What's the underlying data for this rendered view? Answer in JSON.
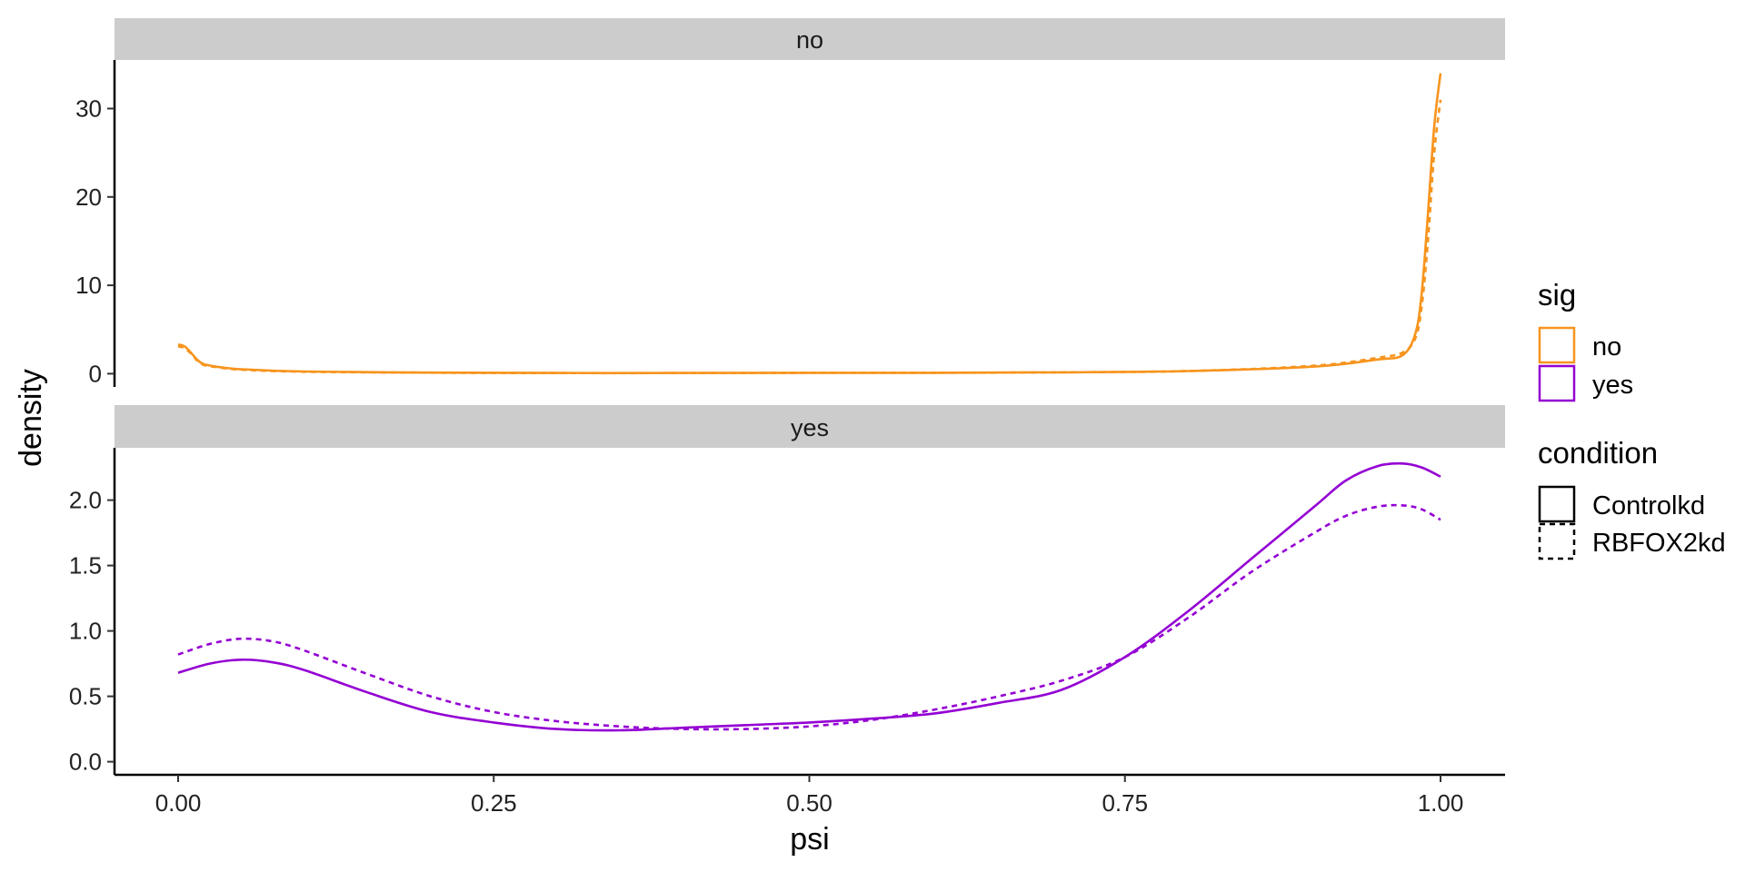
{
  "chart_data": {
    "type": "line",
    "title": "",
    "xlabel": "psi",
    "ylabel": "density",
    "xlim": [
      0,
      1
    ],
    "x_ticks": [
      "0.00",
      "0.25",
      "0.50",
      "0.75",
      "1.00"
    ],
    "x_tick_values": [
      0,
      0.25,
      0.5,
      0.75,
      1
    ],
    "grid": false,
    "colors": {
      "no": "#F7941D",
      "yes": "#9400D3",
      "strip": "#CCCCCC"
    },
    "legend": {
      "position": "right",
      "color_title": "sig",
      "color_entries": [
        "no",
        "yes"
      ],
      "linetype_title": "condition",
      "linetype_entries": [
        "Controlkd",
        "RBFOX2kd"
      ]
    },
    "panels": [
      {
        "strip": "no",
        "sig": "no",
        "ylim": [
          -1.5,
          35.5
        ],
        "y_ticks": [
          "0",
          "10",
          "20",
          "30"
        ],
        "y_tick_values": [
          0,
          10,
          20,
          30
        ],
        "series": [
          {
            "condition": "Controlkd",
            "linetype": "solid",
            "x": [
              0,
              0.005,
              0.01,
              0.015,
              0.02,
              0.03,
              0.05,
              0.1,
              0.2,
              0.3,
              0.4,
              0.5,
              0.6,
              0.7,
              0.8,
              0.9,
              0.95,
              0.97,
              0.98,
              0.985,
              0.99,
              0.995,
              1.0
            ],
            "y": [
              3.3,
              3.1,
              2.4,
              1.6,
              1.1,
              0.8,
              0.5,
              0.25,
              0.12,
              0.08,
              0.08,
              0.1,
              0.1,
              0.15,
              0.3,
              0.8,
              1.6,
              2.1,
              4.5,
              9.0,
              18.0,
              28.0,
              34.0
            ]
          },
          {
            "condition": "RBFOX2kd",
            "linetype": "dashed",
            "x": [
              0,
              0.005,
              0.01,
              0.015,
              0.02,
              0.03,
              0.05,
              0.1,
              0.2,
              0.3,
              0.4,
              0.5,
              0.6,
              0.7,
              0.8,
              0.9,
              0.95,
              0.97,
              0.98,
              0.985,
              0.99,
              0.995,
              1.0
            ],
            "y": [
              3.1,
              2.9,
              2.3,
              1.5,
              1.0,
              0.75,
              0.45,
              0.22,
              0.11,
              0.07,
              0.07,
              0.09,
              0.1,
              0.15,
              0.3,
              0.9,
              1.8,
              2.4,
              4.0,
              7.5,
              15.0,
              25.0,
              31.0
            ]
          }
        ]
      },
      {
        "strip": "yes",
        "sig": "yes",
        "ylim": [
          -0.1,
          2.4
        ],
        "y_ticks": [
          "0.0",
          "0.5",
          "1.0",
          "1.5",
          "2.0"
        ],
        "y_tick_values": [
          0,
          0.5,
          1,
          1.5,
          2
        ],
        "series": [
          {
            "condition": "Controlkd",
            "linetype": "solid",
            "x": [
              0,
              0.025,
              0.05,
              0.075,
              0.1,
              0.15,
              0.2,
              0.25,
              0.3,
              0.35,
              0.4,
              0.45,
              0.5,
              0.55,
              0.6,
              0.65,
              0.7,
              0.75,
              0.8,
              0.85,
              0.9,
              0.925,
              0.95,
              0.97,
              0.985,
              1.0
            ],
            "y": [
              0.68,
              0.75,
              0.78,
              0.76,
              0.7,
              0.53,
              0.38,
              0.3,
              0.25,
              0.24,
              0.26,
              0.28,
              0.3,
              0.33,
              0.37,
              0.45,
              0.55,
              0.8,
              1.15,
              1.55,
              1.95,
              2.15,
              2.26,
              2.28,
              2.25,
              2.18
            ]
          },
          {
            "condition": "RBFOX2kd",
            "linetype": "dashed",
            "x": [
              0,
              0.025,
              0.05,
              0.075,
              0.1,
              0.15,
              0.2,
              0.25,
              0.3,
              0.35,
              0.4,
              0.45,
              0.5,
              0.55,
              0.6,
              0.65,
              0.7,
              0.75,
              0.8,
              0.85,
              0.9,
              0.925,
              0.95,
              0.97,
              0.985,
              1.0
            ],
            "y": [
              0.82,
              0.9,
              0.94,
              0.92,
              0.85,
              0.67,
              0.5,
              0.38,
              0.31,
              0.27,
              0.25,
              0.25,
              0.27,
              0.32,
              0.4,
              0.5,
              0.62,
              0.8,
              1.1,
              1.45,
              1.75,
              1.88,
              1.95,
              1.96,
              1.93,
              1.85
            ]
          }
        ]
      }
    ]
  }
}
